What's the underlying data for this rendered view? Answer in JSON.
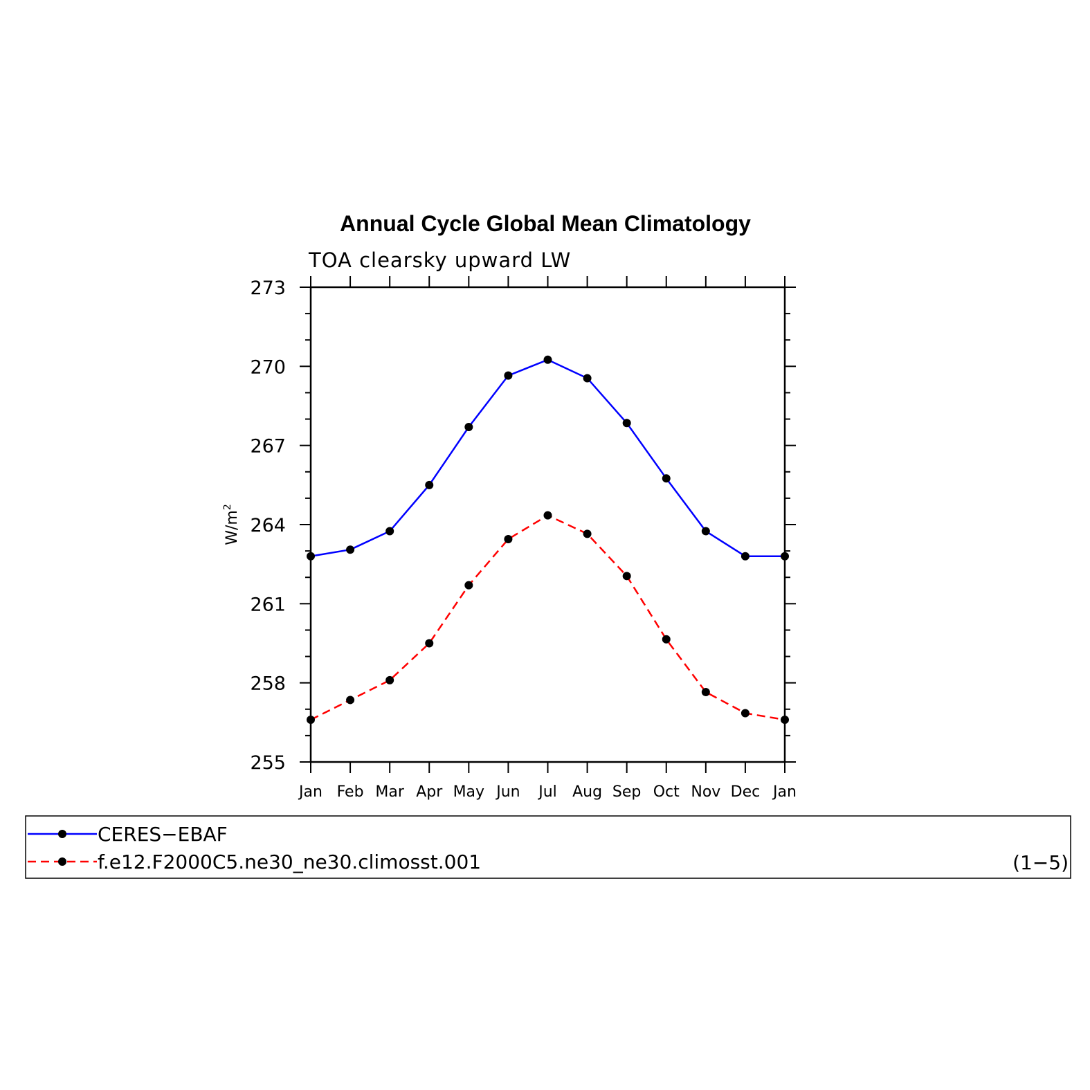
{
  "chart_data": {
    "type": "line",
    "title": "Annual Cycle Global Mean Climatology",
    "subtitle": "TOA clearsky upward LW",
    "ylabel": "W/m",
    "ylabel_superscript": "2",
    "ylim": [
      255,
      273
    ],
    "yticks": [
      "255",
      "258",
      "261",
      "264",
      "267",
      "270",
      "273"
    ],
    "categories": [
      "Jan",
      "Feb",
      "Mar",
      "Apr",
      "May",
      "Jun",
      "Jul",
      "Aug",
      "Sep",
      "Oct",
      "Nov",
      "Dec",
      "Jan"
    ],
    "series": [
      {
        "name": "CERES−EBAF",
        "color": "#0000ff",
        "dash": "solid",
        "values": [
          262.8,
          263.05,
          263.75,
          265.5,
          267.7,
          269.65,
          270.25,
          269.55,
          267.85,
          265.75,
          263.75,
          262.8,
          262.8
        ]
      },
      {
        "name": "f.e12.F2000C5.ne30_ne30.climosst.001",
        "color": "#ff0000",
        "dash": "dashed",
        "values": [
          256.6,
          257.35,
          258.1,
          259.5,
          261.7,
          263.45,
          264.35,
          263.65,
          262.05,
          259.65,
          257.65,
          256.85,
          256.6
        ]
      }
    ],
    "marker_color": "#000000",
    "legend_position": "bottom",
    "panel_label": "(1−5)",
    "grid": false
  }
}
